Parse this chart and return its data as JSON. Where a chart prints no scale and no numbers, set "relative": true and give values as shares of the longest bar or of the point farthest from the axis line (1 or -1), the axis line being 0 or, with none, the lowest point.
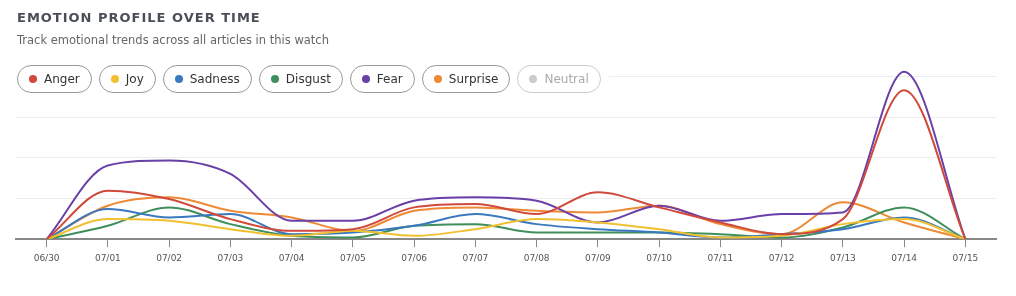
{
  "chart_data": {
    "type": "line",
    "title": "EMOTION PROFILE OVER TIME",
    "subtitle": "Track emotional trends across all articles in this watch",
    "relative": true,
    "grid": "y",
    "legend": "top left",
    "categories": [
      "06/30",
      "07/01",
      "07/02",
      "07/03",
      "07/04",
      "07/05",
      "07/06",
      "07/07",
      "07/08",
      "07/09",
      "07/10",
      "07/11",
      "07/12",
      "07/13",
      "07/14",
      "07/15"
    ],
    "series": [
      {
        "name": "Anger",
        "color": "#d04a3c",
        "values": [
          0,
          0.29,
          0.24,
          0.12,
          0.05,
          0.06,
          0.19,
          0.21,
          0.15,
          0.28,
          0.19,
          0.1,
          0.03,
          0.12,
          0.89,
          0
        ]
      },
      {
        "name": "Joy",
        "color": "#f0c030",
        "values": [
          0,
          0.12,
          0.11,
          0.06,
          0.02,
          0.05,
          0.02,
          0.06,
          0.12,
          0.1,
          0.06,
          0.01,
          0.02,
          0.09,
          0.12,
          0
        ]
      },
      {
        "name": "Sadness",
        "color": "#3a78c0",
        "values": [
          0,
          0.18,
          0.13,
          0.15,
          0.03,
          0.04,
          0.08,
          0.15,
          0.09,
          0.06,
          0.04,
          0.01,
          0.03,
          0.06,
          0.13,
          0
        ]
      },
      {
        "name": "Disgust",
        "color": "#3f8f5a",
        "values": [
          0,
          0.08,
          0.19,
          0.09,
          0.02,
          0.01,
          0.08,
          0.09,
          0.04,
          0.04,
          0.04,
          0.03,
          0.01,
          0.07,
          0.19,
          0
        ]
      },
      {
        "name": "Fear",
        "color": "#6a3fa8",
        "values": [
          0,
          0.44,
          0.47,
          0.39,
          0.11,
          0.11,
          0.23,
          0.25,
          0.23,
          0.1,
          0.2,
          0.11,
          0.15,
          0.16,
          1,
          0
        ]
      },
      {
        "name": "Surprise",
        "color": "#ee8a36",
        "values": [
          0,
          0.2,
          0.25,
          0.17,
          0.13,
          0.05,
          0.17,
          0.19,
          0.17,
          0.16,
          0.2,
          0.09,
          0.03,
          0.22,
          0.1,
          0
        ]
      },
      {
        "name": "Neutral",
        "color": "#cccccc",
        "values": [
          null,
          null,
          null,
          null,
          null,
          null,
          null,
          null,
          null,
          null,
          null,
          null,
          null,
          null,
          null,
          null
        ]
      }
    ]
  }
}
